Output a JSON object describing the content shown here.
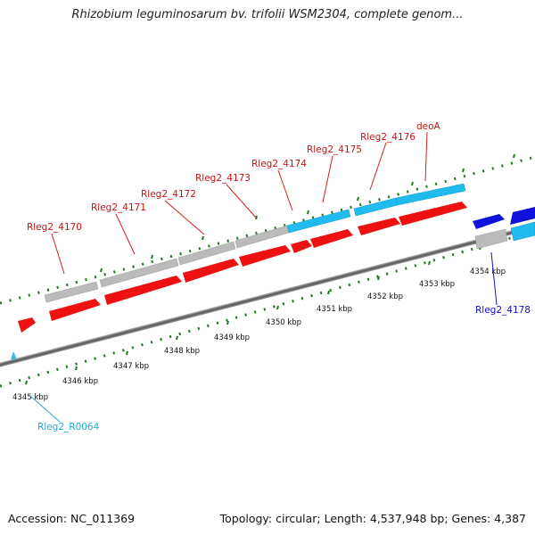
{
  "title": "Rhizobium leguminosarum bv. trifolii WSM2304, complete genom...",
  "footer": {
    "accession": "Accession: NC_011369",
    "summary": "Topology: circular; Length: 4,537,948 bp; Genes: 4,387"
  },
  "scale_labels": [
    "4345 kbp",
    "4346 kbp",
    "4347 kbp",
    "4348 kbp",
    "4349 kbp",
    "4350 kbp",
    "4351 kbp",
    "4352 kbp",
    "4353 kbp",
    "4354 kbp"
  ],
  "gene_labels": {
    "rleg2_4170": "Rleg2_4170",
    "rleg2_4171": "Rleg2_4171",
    "rleg2_4172": "Rleg2_4172",
    "rleg2_4173": "Rleg2_4173",
    "rleg2_4174": "Rleg2_4174",
    "rleg2_4175": "Rleg2_4175",
    "rleg2_4176": "Rleg2_4176",
    "deoA": "deoA",
    "rleg2_4178": "Rleg2_4178",
    "rleg2_r0064": "Rleg2_R0064"
  },
  "colors": {
    "cds": "#ee1111",
    "gene_gray": "#bbbbbb",
    "gene_cyan": "#22bbee",
    "gene_blue": "#1111dd",
    "rna": "#44bbdd",
    "tick": "#227722",
    "backbone": "#777777"
  }
}
